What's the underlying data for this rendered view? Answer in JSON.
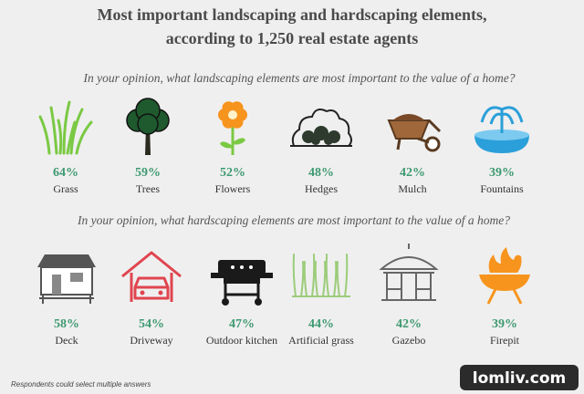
{
  "title": [
    "Most important landscaping and hardscaping elements,",
    "according to 1,250 real estate agents"
  ],
  "sections": [
    {
      "question": "In your opinion, what landscaping elements are most important to the value of a home?",
      "items": [
        {
          "value": "64%",
          "label": "Grass"
        },
        {
          "value": "59%",
          "label": "Trees"
        },
        {
          "value": "52%",
          "label": "Flowers"
        },
        {
          "value": "48%",
          "label": "Hedges"
        },
        {
          "value": "42%",
          "label": "Mulch"
        },
        {
          "value": "39%",
          "label": "Fountains"
        }
      ]
    },
    {
      "question": "In your opinion, what hardscaping elements are most important to the value of a home?",
      "items": [
        {
          "value": "58%",
          "label": "Deck"
        },
        {
          "value": "54%",
          "label": "Driveway"
        },
        {
          "value": "47%",
          "label": "Outdoor kitchen"
        },
        {
          "value": "44%",
          "label": "Artificial grass"
        },
        {
          "value": "42%",
          "label": "Gazebo"
        },
        {
          "value": "39%",
          "label": "Firepit"
        }
      ]
    }
  ],
  "footnote": "Respondents could select multiple answers",
  "watermark": "lomliv.com"
}
